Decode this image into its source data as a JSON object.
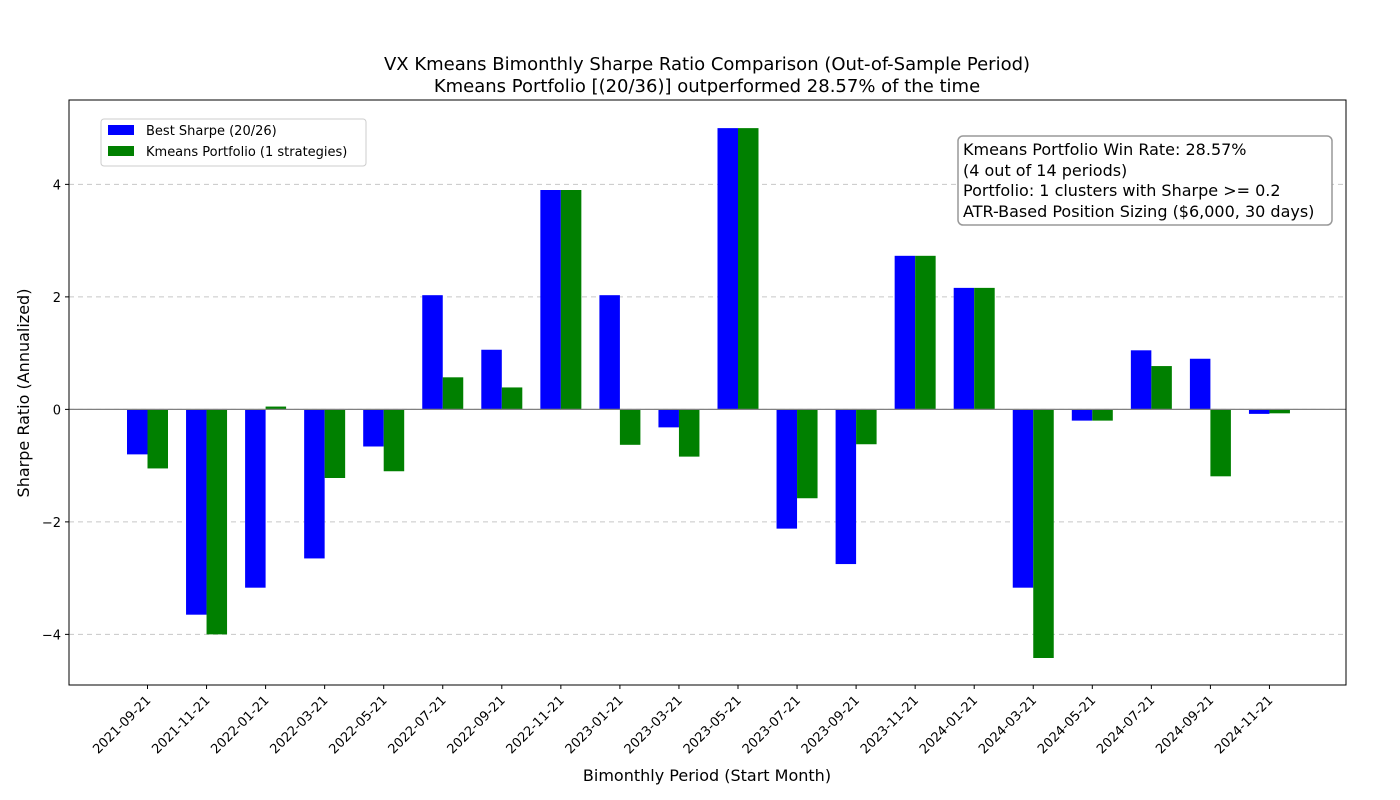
{
  "chart_data": {
    "type": "bar",
    "title": "VX Kmeans Bimonthly Sharpe Ratio Comparison (Out-of-Sample Period)",
    "subtitle": "Kmeans Portfolio [(20/36)] outperformed 28.57% of the time",
    "xlabel": "Bimonthly Period (Start Month)",
    "ylabel": "Sharpe Ratio (Annualized)",
    "ylim": [
      -4.9,
      5.5
    ],
    "yticks": [
      -4,
      -2,
      0,
      2,
      4
    ],
    "grid": "horizontal-dashed",
    "legend_position": "top-left",
    "categories": [
      "2021-09-21",
      "2021-11-21",
      "2022-01-21",
      "2022-03-21",
      "2022-05-21",
      "2022-07-21",
      "2022-09-21",
      "2022-11-21",
      "2023-01-21",
      "2023-03-21",
      "2023-05-21",
      "2023-07-21",
      "2023-09-21",
      "2023-11-21",
      "2024-01-21",
      "2024-03-21",
      "2024-05-21",
      "2024-07-21",
      "2024-09-21",
      "2024-11-21"
    ],
    "series": [
      {
        "name": "Best Sharpe (20/26)",
        "color": "#0000ff",
        "values": [
          -0.8,
          -3.65,
          -3.17,
          -2.65,
          -0.66,
          2.03,
          1.06,
          3.9,
          2.03,
          -0.32,
          5.0,
          -2.12,
          -2.75,
          2.73,
          2.16,
          -3.17,
          -0.2,
          1.05,
          0.9,
          -0.08
        ]
      },
      {
        "name": "Kmeans Portfolio (1 strategies)",
        "color": "#008000",
        "values": [
          -1.05,
          -4.0,
          0.05,
          -1.22,
          -1.1,
          0.57,
          0.39,
          3.9,
          -0.63,
          -0.84,
          5.0,
          -1.58,
          -0.62,
          2.73,
          2.16,
          -4.42,
          -0.2,
          0.77,
          -1.19,
          -0.07
        ]
      }
    ],
    "annotation": {
      "lines": [
        "Kmeans Portfolio Win Rate: 28.57%",
        "(4 out of 14 periods)",
        "Portfolio: 1 clusters with Sharpe >= 0.2",
        "ATR-Based Position Sizing ($6,000, 30 days)"
      ]
    }
  }
}
